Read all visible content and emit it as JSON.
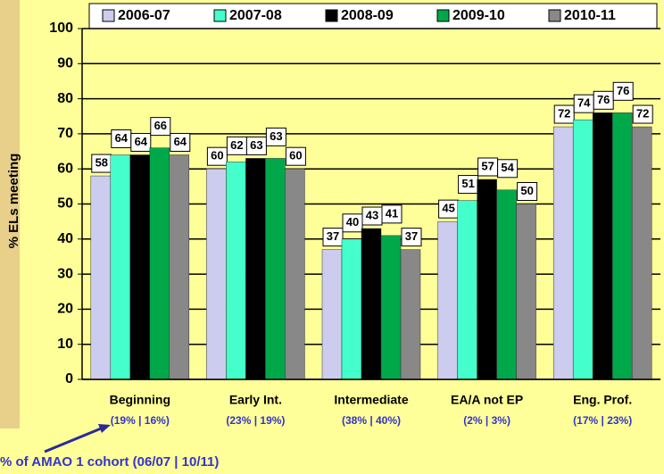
{
  "chart_data": {
    "type": "bar",
    "y_label": "% ELs meeting",
    "annotation": "% of AMAO 1 cohort (06/07 | 10/11)",
    "categories": [
      "Beginning",
      "Early Int.",
      "Intermediate",
      "EA/A not EP",
      "Eng. Prof."
    ],
    "sublabels": [
      "(19% | 16%)",
      "(23% | 19%)",
      "(38% | 40%)",
      "(2% | 3%)",
      "(17% | 23%)"
    ],
    "series": [
      {
        "name": "2006-07",
        "color": "#ccccee",
        "values": [
          58,
          60,
          37,
          45,
          72
        ]
      },
      {
        "name": "2007-08",
        "color": "#44ffcc",
        "values": [
          64,
          62,
          40,
          51,
          74
        ]
      },
      {
        "name": "2008-09",
        "color": "#000000",
        "values": [
          64,
          63,
          43,
          57,
          76
        ]
      },
      {
        "name": "2009-10",
        "color": "#00a84a",
        "values": [
          66,
          63,
          41,
          54,
          76
        ]
      },
      {
        "name": "2010-11",
        "color": "#888888",
        "values": [
          64,
          60,
          37,
          50,
          72
        ]
      }
    ],
    "ylim": [
      0,
      100
    ],
    "yticks": [
      0,
      10,
      20,
      30,
      40,
      50,
      60,
      70,
      80,
      90,
      100
    ],
    "grid": true
  }
}
